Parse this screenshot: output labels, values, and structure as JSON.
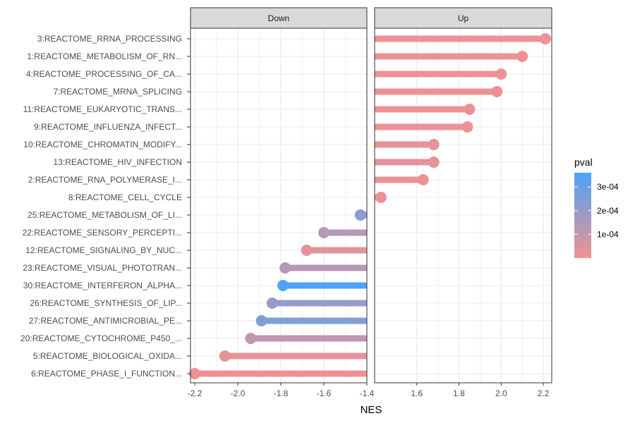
{
  "chart_data": {
    "type": "lollipop",
    "xlabel": "NES",
    "facets": [
      {
        "name": "Down",
        "xlim": [
          -2.22,
          -1.4
        ],
        "ticks": [
          -2.2,
          -2.0,
          -1.8,
          -1.6,
          -1.4
        ],
        "tick_labels": [
          "-2.2",
          "-2.0",
          "-1.8",
          "-1.6",
          "-1.4"
        ]
      },
      {
        "name": "Up",
        "xlim": [
          1.4,
          2.24
        ],
        "ticks": [
          1.6,
          1.8,
          2.0,
          2.2
        ],
        "tick_labels": [
          "1.6",
          "1.8",
          "2.0",
          "2.2"
        ]
      }
    ],
    "categories": [
      "3:REACTOME_RRNA_PROCESSING",
      "1:REACTOME_METABOLISM_OF_RN...",
      "4:REACTOME_PROCESSING_OF_CA...",
      "7:REACTOME_MRNA_SPLICING",
      "11:REACTOME_EUKARYOTIC_TRANS...",
      "9:REACTOME_INFLUENZA_INFECT...",
      "10:REACTOME_CHROMATIN_MODIFY...",
      "13:REACTOME_HIV_INFECTION",
      "2:REACTOME_RNA_POLYMERASE_I...",
      "8:REACTOME_CELL_CYCLE",
      "25:REACTOME_METABOLISM_OF_LI...",
      "22:REACTOME_SENSORY_PERCEPTI...",
      "12:REACTOME_SIGNALING_BY_NUC...",
      "23:REACTOME_VISUAL_PHOTOTRAN...",
      "30:REACTOME_INTERFERON_ALPHA...",
      "26:REACTOME_SYNTHESIS_OF_LIP...",
      "27:REACTOME_ANTIMICROBIAL_PE...",
      "20:REACTOME_CYTOCHROME_P450_...",
      "5:REACTOME_BIOLOGICAL_OXIDA...",
      "6:REACTOME_PHASE_I_FUNCTION..."
    ],
    "points": [
      {
        "facet": "Up",
        "nes": 2.21,
        "pval": 1e-05
      },
      {
        "facet": "Up",
        "nes": 2.1,
        "pval": 1e-05
      },
      {
        "facet": "Up",
        "nes": 2.0,
        "pval": 1e-05
      },
      {
        "facet": "Up",
        "nes": 1.98,
        "pval": 1e-05
      },
      {
        "facet": "Up",
        "nes": 1.85,
        "pval": 1e-05
      },
      {
        "facet": "Up",
        "nes": 1.84,
        "pval": 1e-05
      },
      {
        "facet": "Up",
        "nes": 1.68,
        "pval": 2e-05
      },
      {
        "facet": "Up",
        "nes": 1.68,
        "pval": 3e-05
      },
      {
        "facet": "Up",
        "nes": 1.63,
        "pval": 1e-05
      },
      {
        "facet": "Up",
        "nes": 1.43,
        "pval": 1e-05
      },
      {
        "facet": "Down",
        "nes": -1.43,
        "pval": 0.00023
      },
      {
        "facet": "Down",
        "nes": -1.6,
        "pval": 0.00013
      },
      {
        "facet": "Down",
        "nes": -1.68,
        "pval": 3e-05
      },
      {
        "facet": "Down",
        "nes": -1.78,
        "pval": 0.00013
      },
      {
        "facet": "Down",
        "nes": -1.79,
        "pval": 0.00036
      },
      {
        "facet": "Down",
        "nes": -1.84,
        "pval": 0.0002
      },
      {
        "facet": "Down",
        "nes": -1.89,
        "pval": 0.00025
      },
      {
        "facet": "Down",
        "nes": -1.94,
        "pval": 0.0001
      },
      {
        "facet": "Down",
        "nes": -2.06,
        "pval": 2e-05
      },
      {
        "facet": "Down",
        "nes": -2.2,
        "pval": 1e-05
      }
    ],
    "legend": {
      "title": "pval",
      "position": "right",
      "min": 0,
      "max": 0.00036,
      "breaks": [
        0.0001,
        0.0002,
        0.0003
      ],
      "break_labels": [
        "1e-04",
        "2e-04",
        "3e-04"
      ],
      "low_color": "#F19193",
      "high_color": "#4DA3F8"
    },
    "grid": true
  }
}
